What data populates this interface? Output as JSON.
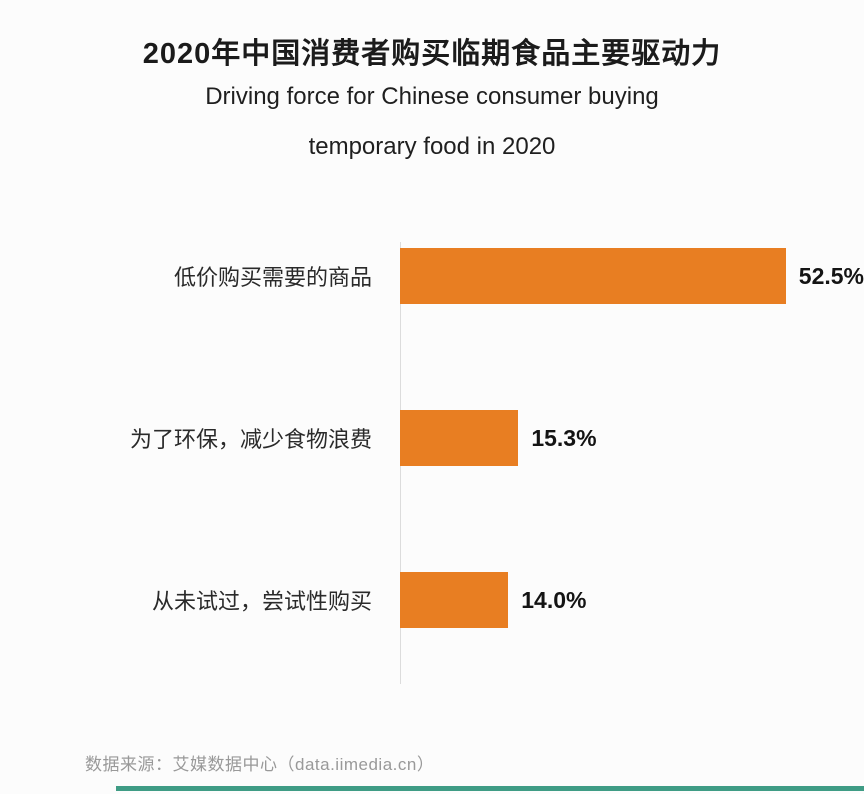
{
  "chart_data": {
    "type": "bar",
    "orientation": "horizontal",
    "title": "2020年中国消费者购买临期食品主要驱动力",
    "subtitle_lines": [
      "Driving force for Chinese consumer buying",
      "temporary food in 2020"
    ],
    "categories": [
      "低价购买需要的商品",
      "为了环保，减少食物浪费",
      "从未试过，尝试性购买"
    ],
    "values": [
      52.5,
      15.3,
      14.0
    ],
    "value_labels": [
      "52.5%",
      "15.3%",
      "14.0%"
    ],
    "xlim": [
      0,
      60
    ],
    "grid": false,
    "legend": "none",
    "bar_color": "#e87e22"
  },
  "footer": {
    "source": "数据来源：艾媒数据中心（data.iimedia.cn）",
    "accent_color": "#3f9c85"
  }
}
